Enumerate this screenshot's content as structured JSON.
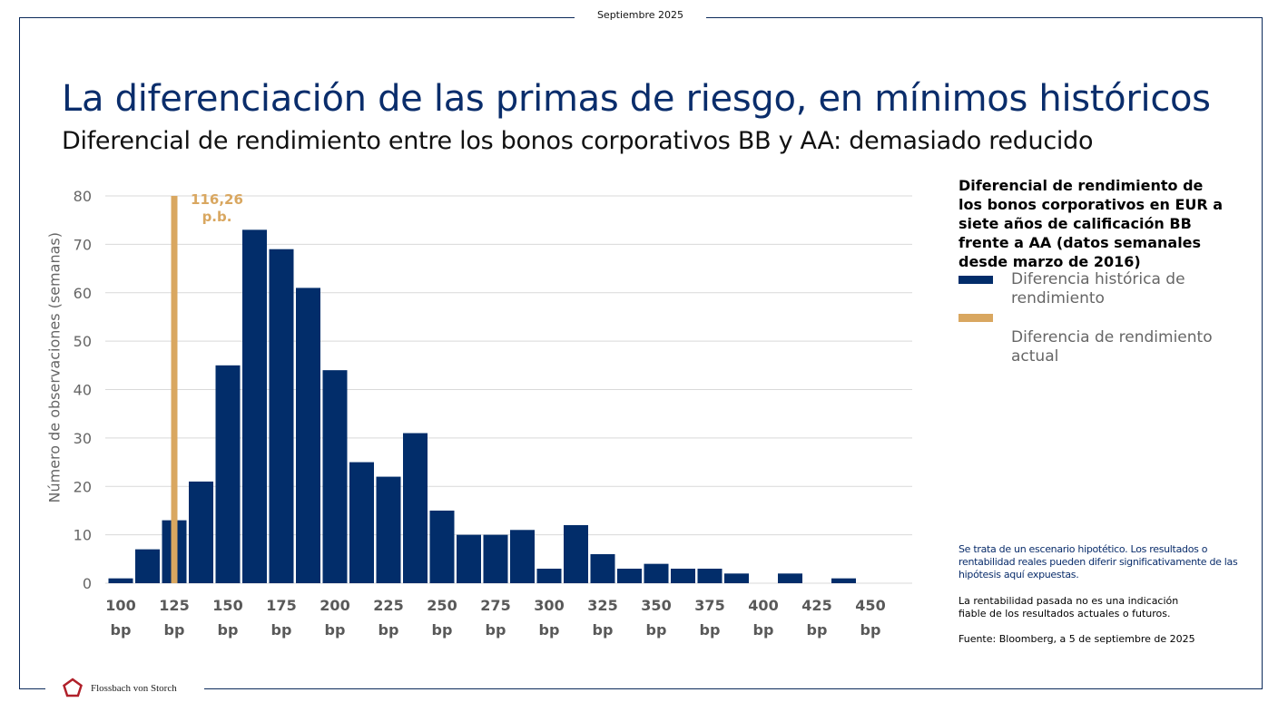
{
  "header": {
    "date": "Septiembre 2025"
  },
  "title": "La diferenciación de las primas de riesgo, en mínimos históricos",
  "subtitle": "Diferencial de rendimiento entre los bonos corporativos BB y AA: demasiado reducido",
  "legend": {
    "title": "Diferencial de rendimiento de los bonos corporativos en EUR a siete años de calificación BB frente a AA (datos semanales desde marzo de 2016)",
    "items": [
      {
        "label": "Diferencia histórica de rendimiento",
        "color": "#022d6a"
      },
      {
        "label": "Diferencia de rendimiento actual",
        "color": "#d9a760"
      }
    ]
  },
  "notes": {
    "disclaimer": "Se trata de un escenario hipotético. Los resultados o rentabilidad reales pueden diferir significativamente de las hipótesis aquí expuestas.",
    "past_performance": "La rentabilidad pasada no es una indicación fiable de los resultados actuales o futuros.",
    "source": "Fuente: Bloomberg, a 5 de septiembre de 2025"
  },
  "logo": {
    "text": "Flossbach von Storch"
  },
  "chart_data": {
    "type": "bar",
    "ylabel": "Número de observaciones (semanas)",
    "xlabel": "",
    "ylim": [
      0,
      80
    ],
    "yticks": [
      0,
      10,
      20,
      30,
      40,
      50,
      60,
      70,
      80
    ],
    "xticks": [
      "100 bp",
      "125 bp",
      "150 bp",
      "175 bp",
      "200 bp",
      "225 bp",
      "250 bp",
      "275 bp",
      "300 bp",
      "325 bp",
      "350 bp",
      "375 bp",
      "400 bp",
      "425 bp",
      "450 bp"
    ],
    "xtick_values": [
      100,
      125,
      150,
      175,
      200,
      225,
      250,
      275,
      300,
      325,
      350,
      375,
      400,
      425,
      450
    ],
    "bin_centers": [
      100,
      112.5,
      125,
      137.5,
      150,
      162.5,
      175,
      187.5,
      200,
      212.5,
      225,
      237.5,
      250,
      262.5,
      275,
      287.5,
      300,
      312.5,
      325,
      337.5,
      350,
      362.5,
      375,
      387.5,
      400,
      412.5,
      425,
      437.5
    ],
    "values": [
      1,
      7,
      13,
      21,
      45,
      73,
      69,
      61,
      44,
      25,
      22,
      31,
      15,
      10,
      10,
      11,
      3,
      12,
      6,
      3,
      4,
      3,
      3,
      2,
      0,
      2,
      0,
      1
    ],
    "series_color": "#022d6a",
    "grid": true,
    "current": {
      "value": 116.26,
      "label_value": "116,26",
      "label_unit": "p.b.",
      "drawn_at": 125,
      "height": 80,
      "color": "#d9a760"
    }
  }
}
